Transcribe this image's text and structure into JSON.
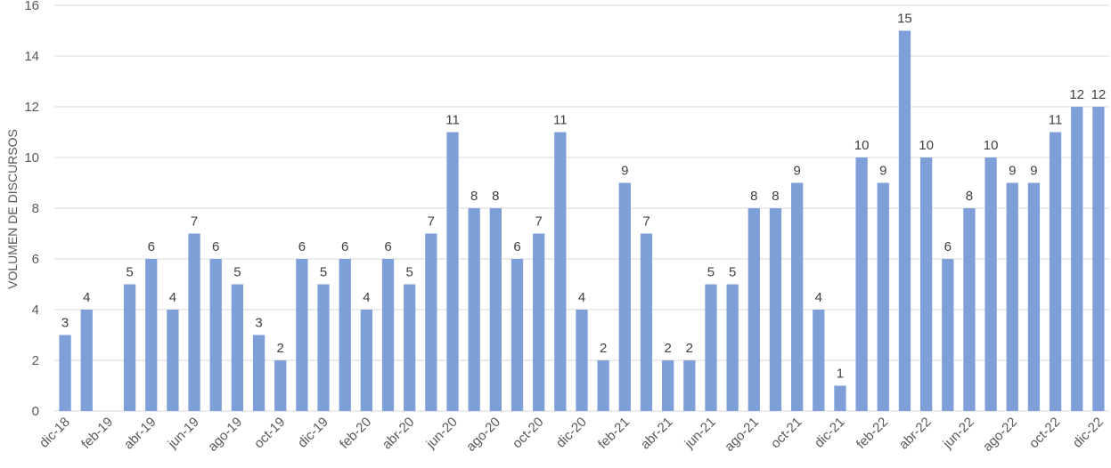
{
  "chart_data": {
    "type": "bar",
    "title": "",
    "xlabel": "",
    "ylabel": "VOLUMEN DE DISCURSOS",
    "ylim": [
      0,
      16
    ],
    "ytick_step": 2,
    "grid": true,
    "legend": "none",
    "bar_color": "#7f9fd9",
    "categories": [
      "dic-18",
      "ene-19",
      "feb-19",
      "mar-19",
      "abr-19",
      "may-19",
      "jun-19",
      "jul-19",
      "ago-19",
      "sep-19",
      "oct-19",
      "nov-19",
      "dic-19",
      "ene-20",
      "feb-20",
      "mar-20",
      "abr-20",
      "may-20",
      "jun-20",
      "jul-20",
      "ago-20",
      "sep-20",
      "oct-20",
      "nov-20",
      "dic-20",
      "ene-21",
      "feb-21",
      "mar-21",
      "abr-21",
      "may-21",
      "jun-21",
      "jul-21",
      "ago-21",
      "sep-21",
      "oct-21",
      "nov-21",
      "dic-21",
      "ene-22",
      "feb-22",
      "mar-22",
      "abr-22",
      "may-22",
      "jun-22",
      "jul-22",
      "ago-22",
      "sep-22",
      "oct-22",
      "nov-22",
      "dic-22"
    ],
    "shown_tick_labels": [
      "dic-18",
      "feb-19",
      "abr-19",
      "jun-19",
      "ago-19",
      "oct-19",
      "dic-19",
      "feb-20",
      "abr-20",
      "jun-20",
      "ago-20",
      "oct-20",
      "dic-20",
      "feb-21",
      "abr-21",
      "jun-21",
      "ago-21",
      "oct-21",
      "dic-21",
      "feb-22",
      "abr-22",
      "jun-22",
      "ago-22",
      "oct-22",
      "dic-22"
    ],
    "values": [
      3,
      4,
      null,
      5,
      6,
      4,
      7,
      6,
      5,
      3,
      2,
      6,
      5,
      6,
      4,
      6,
      5,
      7,
      11,
      8,
      8,
      6,
      7,
      11,
      4,
      2,
      9,
      7,
      2,
      2,
      5,
      5,
      8,
      8,
      9,
      4,
      1,
      10,
      9,
      15,
      10,
      6,
      8,
      10,
      9,
      9,
      11,
      12,
      12
    ]
  }
}
